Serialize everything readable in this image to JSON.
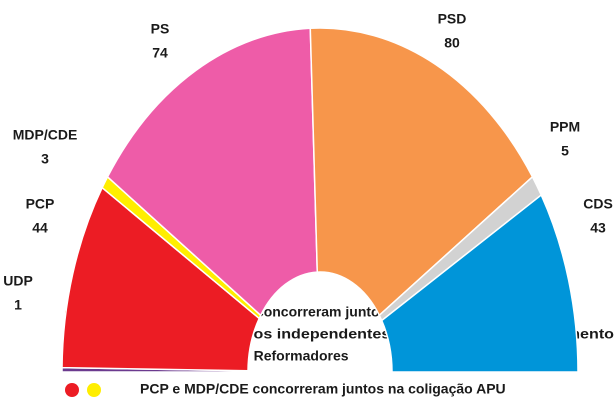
{
  "chart_data": {
    "type": "parliament",
    "categories": [
      "UDP",
      "PCP",
      "MDP/CDE",
      "PS",
      "PSD",
      "PPM",
      "CDS"
    ],
    "values": [
      1,
      44,
      3,
      74,
      80,
      5,
      43
    ],
    "colors": [
      "#6b3a8e",
      "#ec1c24",
      "#ffee00",
      "#ee5ca8",
      "#f7964b",
      "#d2d2d2",
      "#0095d9"
    ],
    "notes": [
      "PSD, CDS e PPM concorreram juntos na coligação AD",
      "Cinco Deputados independentes constituíram o Agrupamento",
      "Parlamentar dos Reformadores",
      "PCP e MDP/CDE concorreram juntos na coligação APU"
    ]
  }
}
